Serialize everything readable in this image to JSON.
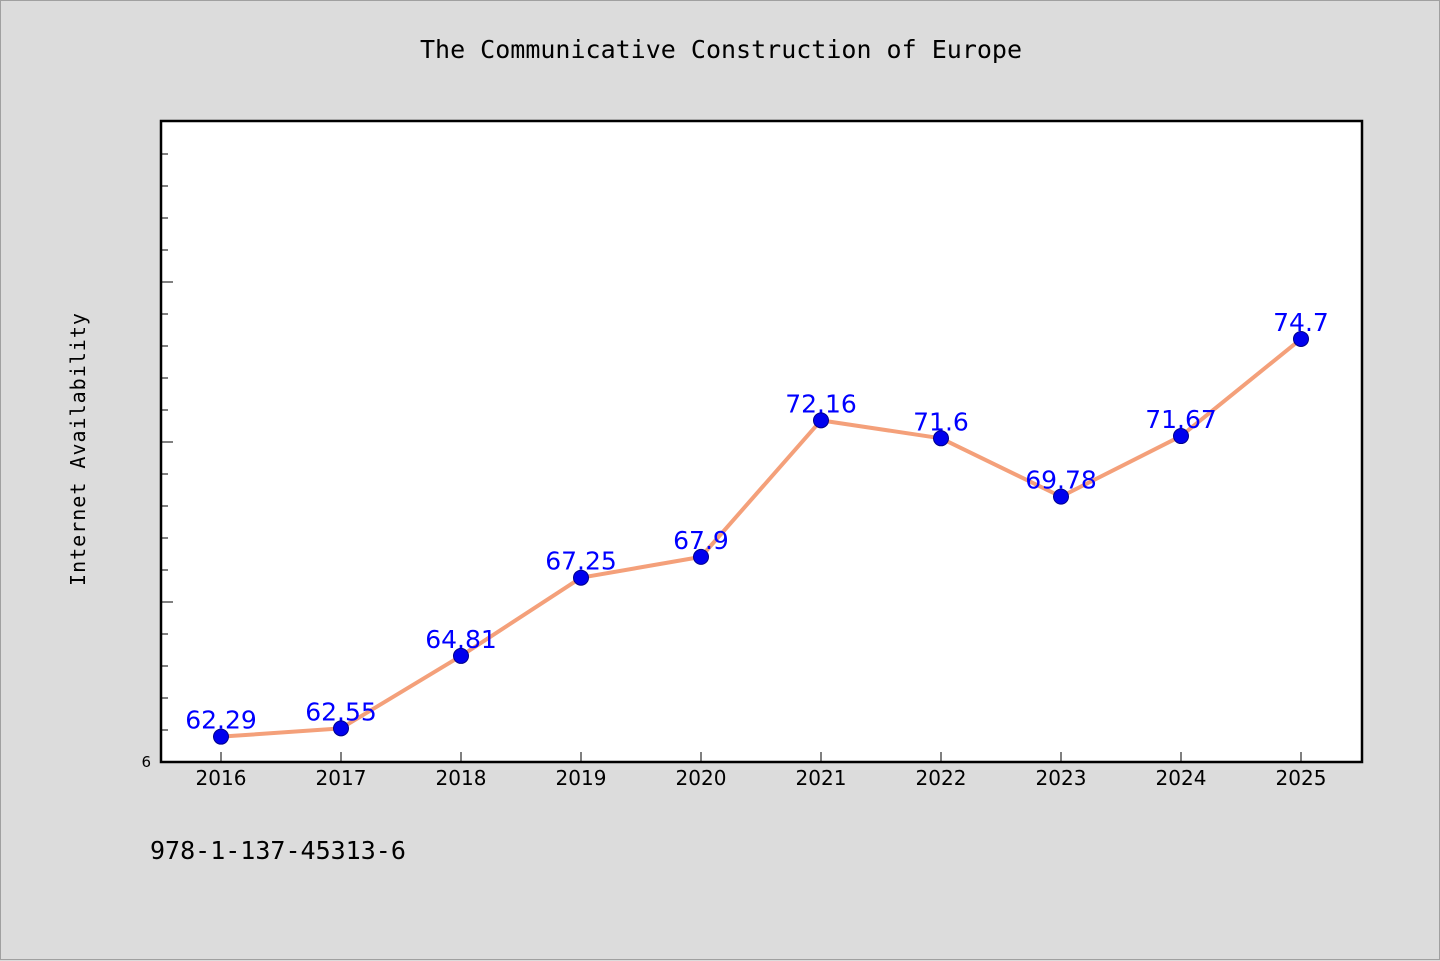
{
  "chart_data": {
    "type": "line",
    "title": "The Communicative Construction of Europe",
    "xlabel": "",
    "ylabel": "Internet Availability",
    "categories": [
      "2016",
      "2017",
      "2018",
      "2019",
      "2020",
      "2021",
      "2022",
      "2023",
      "2024",
      "2025"
    ],
    "series": [
      {
        "values": [
          62.29,
          62.55,
          64.81,
          67.25,
          67.9,
          72.16,
          71.6,
          69.78,
          71.67,
          74.7
        ],
        "labels": [
          "62.29",
          "62.55",
          "64.81",
          "67.25",
          "67.9",
          "72.16",
          "71.6",
          "69.78",
          "71.67",
          "74.7"
        ]
      }
    ],
    "y_tick_labels": [
      "6"
    ],
    "ylim": [
      61.5,
      81.5
    ],
    "grid": false,
    "legend": "none",
    "colors": {
      "line": "#f4a07a",
      "marker_fill": "#0000ee",
      "marker_stroke": "#00008b",
      "data_label": "#0000ff",
      "background": "#dcdcdc",
      "plot_background": "#ffffff"
    }
  },
  "footer": {
    "isbn": "978-1-137-45313-6"
  }
}
